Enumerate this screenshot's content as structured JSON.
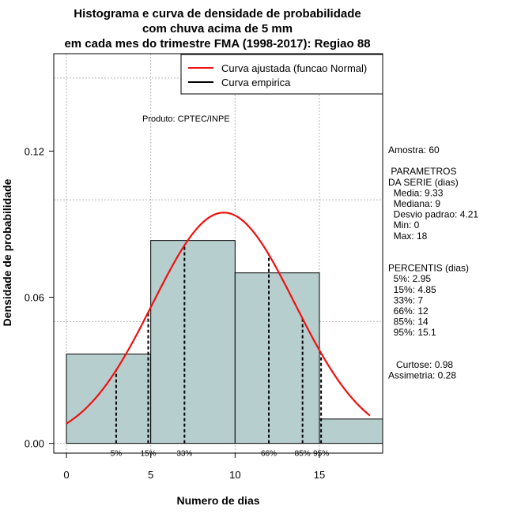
{
  "chart_data": {
    "type": "histogram",
    "title_lines": [
      "Histograma e curva de densidade de probabilidade",
      "com chuva acima de 5 mm",
      "em cada mes do trimestre FMA (1998-2017): Regiao 88"
    ],
    "xlabel": "Numero de dias",
    "ylabel": "Densidade de probabilidade",
    "xlim": [
      -0.75,
      18.75
    ],
    "ylim": [
      -0.004,
      0.16
    ],
    "x_ticks": [
      0,
      5,
      10,
      15
    ],
    "x_tick_labels": [
      "0",
      "5",
      "10",
      "15"
    ],
    "y_ticks": [
      0.0,
      0.06,
      0.12
    ],
    "y_tick_labels": [
      "0.00",
      "0.06",
      "0.12"
    ],
    "grid": true,
    "bar_color": "#b7cece",
    "curve_color": "#ee1111",
    "bins": [
      {
        "x0": 0,
        "x1": 5,
        "density": 0.0367
      },
      {
        "x0": 5,
        "x1": 10,
        "density": 0.0833
      },
      {
        "x0": 10,
        "x1": 15,
        "density": 0.07
      },
      {
        "x0": 15,
        "x1": 18.75,
        "density": 0.01
      }
    ],
    "normal_fit": {
      "mean": 9.33,
      "sd": 4.21,
      "x_from": 0,
      "x_to": 18
    },
    "percentiles": [
      {
        "label": "5%",
        "x": 2.95
      },
      {
        "label": "15%",
        "x": 4.85
      },
      {
        "label": "33%",
        "x": 7
      },
      {
        "label": "66%",
        "x": 12
      },
      {
        "label": "85%",
        "x": 14
      },
      {
        "label": "95%",
        "x": 15.1
      }
    ],
    "legend": {
      "position": "top-right",
      "entries": [
        {
          "label": "Curva ajustada (funcao Normal)",
          "color": "#ee1111"
        },
        {
          "label": "Curva empirica",
          "color": "#000000"
        }
      ]
    },
    "annotation": "Produto: CPTEC/INPE",
    "side_panel": [
      "Amostra: 60",
      "",
      " PARAMETROS",
      "DA SERIE (dias)",
      "  Media: 9.33",
      "  Mediana: 9",
      "  Desvio padrao: 4.21",
      "  Min: 0",
      "  Max: 18",
      "",
      "",
      "PERCENTIS (dias)",
      "  5%: 2.95",
      "  15%: 4.85",
      "  33%: 7",
      "  66%: 12",
      "  85%: 14",
      "  95%: 15.1",
      "",
      "",
      "   Curtose: 0.98",
      "Assimetria: 0.28"
    ]
  }
}
